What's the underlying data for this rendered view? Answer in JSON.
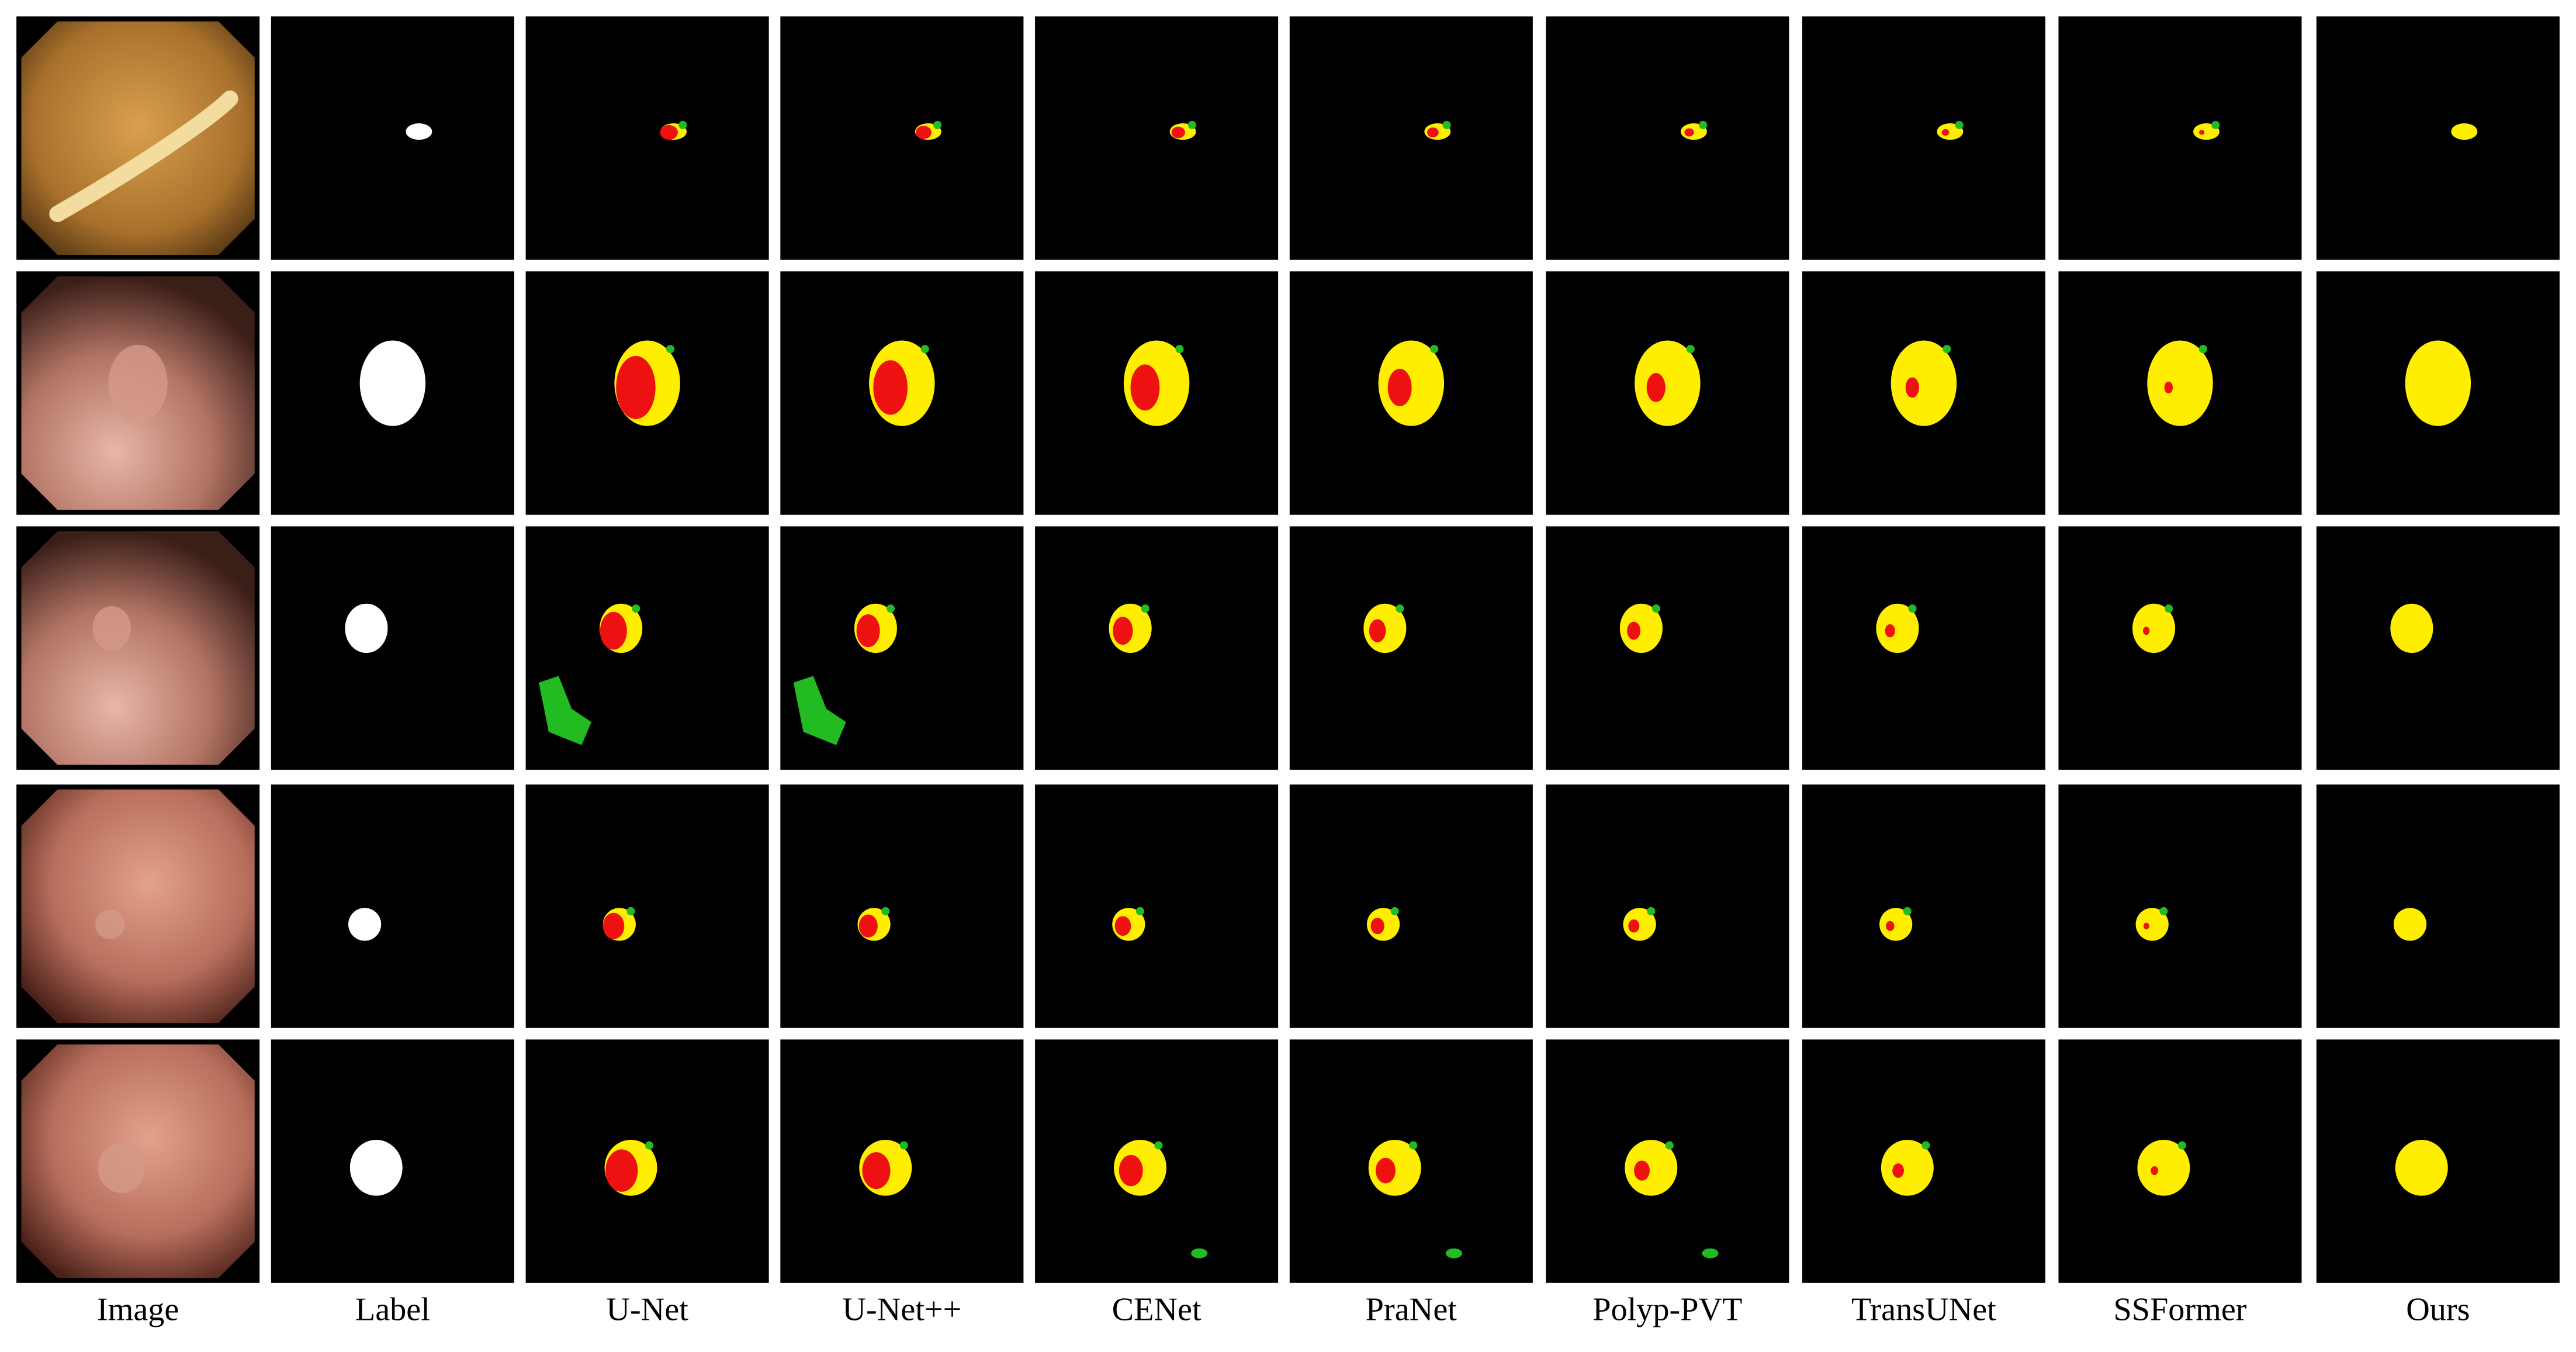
{
  "columns": [
    "Image",
    "Label",
    "U-Net",
    "U-Net++",
    "CENet",
    "PraNet",
    "Polyp-PVT",
    "TransUNet",
    "SSFormer",
    "Ours"
  ]
}
